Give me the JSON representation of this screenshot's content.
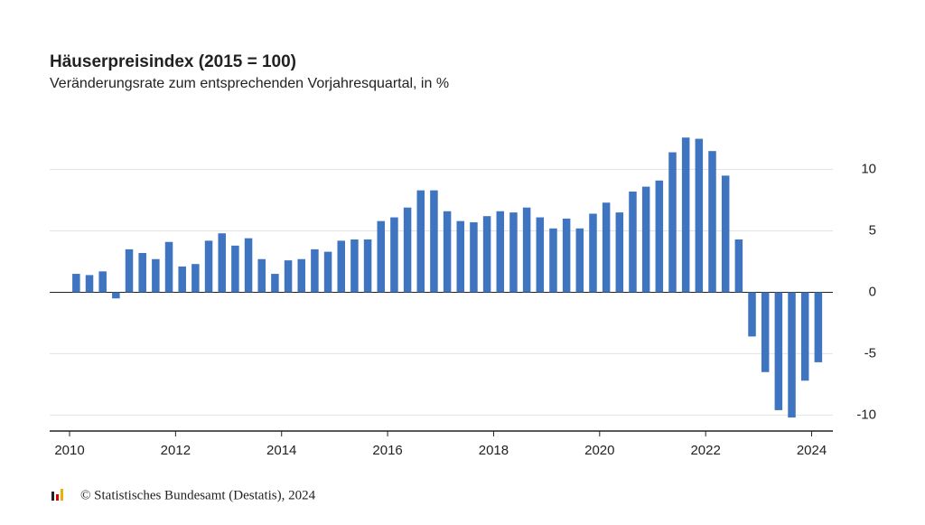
{
  "chart_data": {
    "type": "bar",
    "title": "Häuserpreisindex (2015 = 100)",
    "subtitle": "Veränderungsrate zum entsprechenden Vorjahresquartal, in %",
    "source": "© Statistisches Bundesamt (Destatis), 2024",
    "color": "#3f74c1",
    "x": [
      2010.125,
      2010.375,
      2010.625,
      2010.875,
      2011.125,
      2011.375,
      2011.625,
      2011.875,
      2012.125,
      2012.375,
      2012.625,
      2012.875,
      2013.125,
      2013.375,
      2013.625,
      2013.875,
      2014.125,
      2014.375,
      2014.625,
      2014.875,
      2015.125,
      2015.375,
      2015.625,
      2015.875,
      2016.125,
      2016.375,
      2016.625,
      2016.875,
      2017.125,
      2017.375,
      2017.625,
      2017.875,
      2018.125,
      2018.375,
      2018.625,
      2018.875,
      2019.125,
      2019.375,
      2019.625,
      2019.875,
      2020.125,
      2020.375,
      2020.625,
      2020.875,
      2021.125,
      2021.375,
      2021.625,
      2021.875,
      2022.125,
      2022.375,
      2022.625,
      2022.875,
      2023.125,
      2023.375,
      2023.625,
      2023.875,
      2024.125
    ],
    "values": [
      1.5,
      1.4,
      1.7,
      -0.5,
      3.5,
      3.2,
      2.7,
      4.1,
      2.1,
      2.3,
      4.2,
      4.8,
      3.8,
      4.4,
      2.7,
      1.5,
      2.6,
      2.7,
      3.5,
      3.3,
      4.2,
      4.3,
      4.3,
      5.8,
      6.1,
      6.9,
      8.3,
      8.3,
      6.6,
      5.8,
      5.7,
      6.2,
      6.6,
      6.5,
      6.9,
      6.1,
      5.2,
      6.0,
      5.2,
      6.4,
      7.3,
      6.5,
      8.2,
      8.6,
      9.1,
      11.4,
      12.6,
      12.5,
      11.5,
      9.5,
      4.3,
      -3.6,
      -6.5,
      -9.6,
      -10.2,
      -7.2,
      -5.7
    ],
    "xlim": [
      2009.625,
      2024.4
    ],
    "xticks": [
      2010,
      2012,
      2014,
      2016,
      2018,
      2020,
      2022,
      2024
    ],
    "ylim": [
      -11.3,
      13.5
    ],
    "yticks": [
      -10,
      -5,
      0,
      5,
      10
    ],
    "grid": true
  }
}
